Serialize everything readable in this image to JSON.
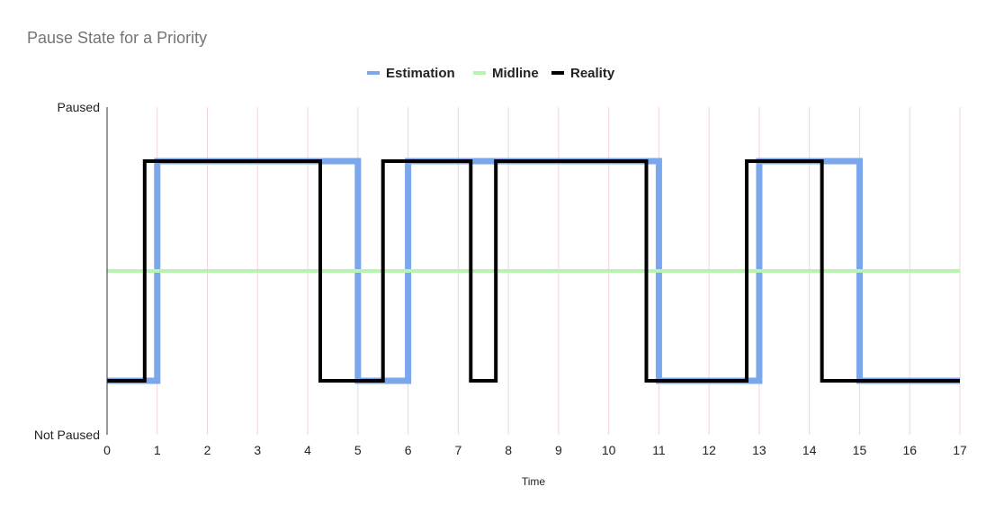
{
  "chart_data": {
    "type": "line",
    "title": "Pause State for a Priority",
    "xlabel": "Time",
    "ylabel": "",
    "xlim": [
      0,
      17
    ],
    "ylim": [
      0,
      1
    ],
    "x_ticks": [
      "0",
      "1",
      "2",
      "3",
      "4",
      "5",
      "6",
      "7",
      "8",
      "9",
      "10",
      "11",
      "12",
      "13",
      "14",
      "15",
      "16",
      "17"
    ],
    "y_ticks": [
      "Not Paused",
      "Paused"
    ],
    "legend_position": "top-center",
    "grid": "vertical",
    "series": [
      {
        "name": "Estimation",
        "color": "#7BA7EC",
        "points": [
          [
            0,
            0.165
          ],
          [
            1,
            0.165
          ],
          [
            1,
            0.835
          ],
          [
            5,
            0.835
          ],
          [
            5,
            0.165
          ],
          [
            6,
            0.165
          ],
          [
            6,
            0.835
          ],
          [
            11,
            0.835
          ],
          [
            11,
            0.165
          ],
          [
            13,
            0.165
          ],
          [
            13,
            0.835
          ],
          [
            15,
            0.835
          ],
          [
            15,
            0.165
          ],
          [
            17,
            0.165
          ]
        ]
      },
      {
        "name": "Midline",
        "color": "#B7F4B2",
        "points": [
          [
            0,
            0.5
          ],
          [
            17,
            0.5
          ]
        ]
      },
      {
        "name": "Reality",
        "color": "#000000",
        "points": [
          [
            0,
            0.165
          ],
          [
            0.75,
            0.165
          ],
          [
            0.75,
            0.835
          ],
          [
            4.25,
            0.835
          ],
          [
            4.25,
            0.165
          ],
          [
            5.5,
            0.165
          ],
          [
            5.5,
            0.835
          ],
          [
            7.25,
            0.835
          ],
          [
            7.25,
            0.165
          ],
          [
            7.75,
            0.165
          ],
          [
            7.75,
            0.835
          ],
          [
            10.75,
            0.835
          ],
          [
            10.75,
            0.165
          ],
          [
            12.75,
            0.165
          ],
          [
            12.75,
            0.835
          ],
          [
            14.25,
            0.835
          ],
          [
            14.25,
            0.165
          ],
          [
            17,
            0.165
          ]
        ]
      }
    ]
  }
}
